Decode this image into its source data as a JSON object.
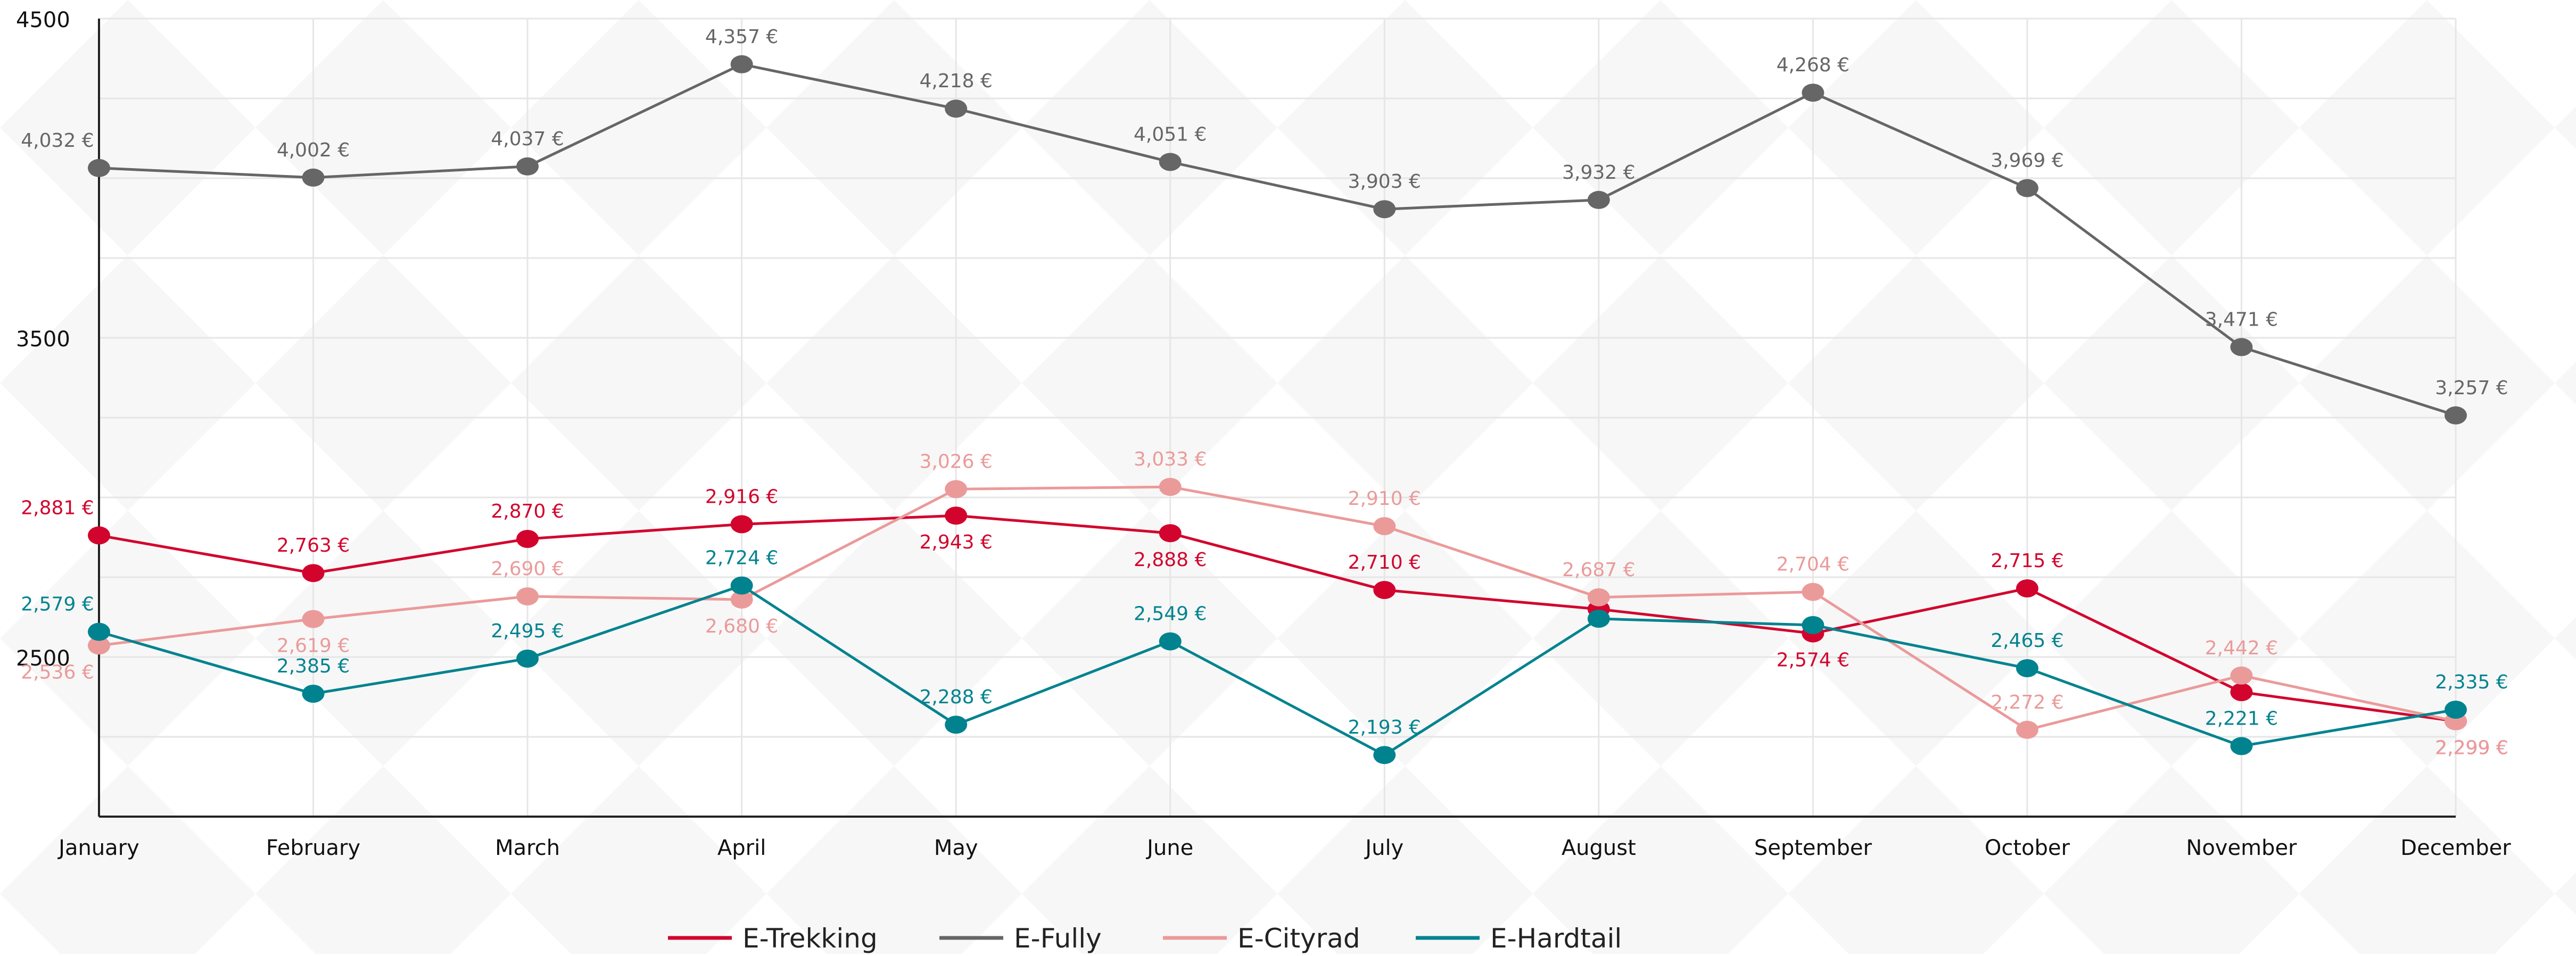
{
  "chart_data": {
    "type": "line",
    "title": "",
    "xlabel": "",
    "ylabel": "",
    "categories": [
      "January",
      "February",
      "March",
      "April",
      "May",
      "June",
      "July",
      "August",
      "September",
      "October",
      "November",
      "December"
    ],
    "y_ticks": [
      "4500",
      "3500",
      "2500"
    ],
    "y_tick_values": [
      4500,
      3500,
      2500
    ],
    "ylim": [
      2000,
      4500
    ],
    "grid": true,
    "legend_position": "bottom",
    "series": [
      {
        "name": "E-Trekking",
        "color": "#d2042d",
        "values": [
          2881,
          2763,
          2870,
          2916,
          2943,
          2888,
          2710,
          2650,
          2574,
          2715,
          2390,
          2299
        ],
        "labels": [
          "2,881 €",
          "2,763 €",
          "2,870 €",
          "2,916 €",
          "2,943 €",
          "2,888 €",
          "2,710 €",
          "",
          "2,574 €",
          "2,715 €",
          "",
          "2,299 €"
        ]
      },
      {
        "name": "E-Fully",
        "color": "#666666",
        "values": [
          4032,
          4002,
          4037,
          4357,
          4218,
          4051,
          3903,
          3932,
          4268,
          3969,
          3471,
          3257
        ],
        "labels": [
          "4,032 €",
          "4,002 €",
          "4,037 €",
          "4,357 €",
          "4,218 €",
          "4,051 €",
          "3,903 €",
          "3,932 €",
          "4,268 €",
          "3,969 €",
          "3,471 €",
          "3,257 €"
        ]
      },
      {
        "name": "E-Cityrad",
        "color": "#eb9a9a",
        "values": [
          2536,
          2619,
          2690,
          2680,
          3026,
          3033,
          2910,
          2687,
          2704,
          2272,
          2442,
          2299
        ],
        "labels": [
          "2,536 €",
          "2,619 €",
          "2,690 €",
          "2,680 €",
          "3,026 €",
          "3,033 €",
          "2,910 €",
          "2,687 €",
          "2,704 €",
          "2,272 €",
          "2,442 €",
          "2,299 €"
        ]
      },
      {
        "name": "E-Hardtail",
        "color": "#00838f",
        "values": [
          2579,
          2385,
          2495,
          2724,
          2288,
          2549,
          2193,
          2620,
          2600,
          2465,
          2221,
          2335
        ],
        "labels": [
          "2,579 €",
          "2,385 €",
          "2,495 €",
          "2,724 €",
          "2,288 €",
          "2,549 €",
          "2,193 €",
          "",
          "",
          "2,465 €",
          "2,221 €",
          "2,335 €"
        ]
      }
    ]
  }
}
